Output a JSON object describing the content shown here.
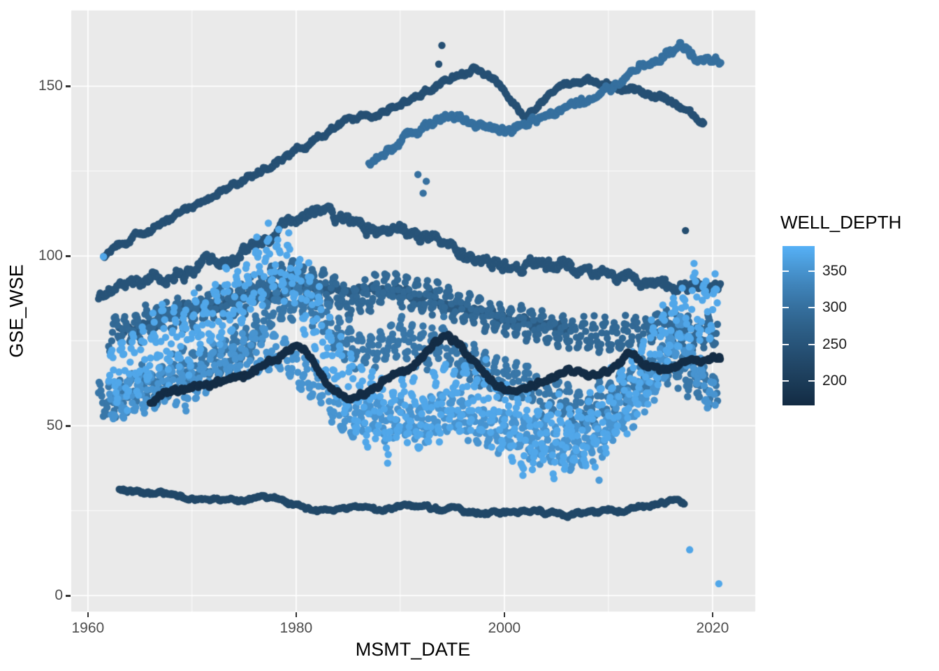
{
  "chart_data": {
    "type": "scatter",
    "title": "",
    "xlabel": "MSMT_DATE",
    "ylabel": "GSE_WSE",
    "x_axis": {
      "ticks": [
        1960,
        1980,
        2000,
        2020
      ],
      "tick_labels": [
        "1960",
        "1980",
        "2000",
        "2020"
      ],
      "minor_ticks": [
        1970,
        1990,
        2010
      ],
      "lim": [
        1958.4,
        2024.1
      ]
    },
    "y_axis": {
      "ticks": [
        0,
        50,
        100,
        150
      ],
      "tick_labels": [
        "0",
        "50",
        "100",
        "150"
      ],
      "minor_ticks": [
        25,
        75,
        125
      ],
      "lim": [
        -4.7,
        172.3
      ]
    },
    "grid": "on",
    "legend": {
      "title": "WELL_DEPTH",
      "position": "right",
      "ticks": [
        350,
        300,
        250,
        200
      ],
      "tick_labels": [
        "350",
        "300",
        "250",
        "200"
      ],
      "domain": [
        166,
        385
      ]
    },
    "colors": {
      "panel_bg": "#EAEAEA",
      "grid": "#FFFFFF",
      "scale_low": "#132B43",
      "scale_high": "#56B1F7",
      "tick_text": "#4D4D4D",
      "axis_tick": "#333333"
    },
    "point_radius_px": 5.2,
    "series": [
      {
        "well_depth": 224,
        "seasonal": false,
        "amp": 1.1,
        "per_year": 10,
        "start": 1963,
        "end": 2017.3,
        "phase": 0,
        "keypoints": [
          [
            1963,
            31
          ],
          [
            1965,
            30.5
          ],
          [
            1967,
            30
          ],
          [
            1969,
            29
          ],
          [
            1971,
            28.5
          ],
          [
            1973,
            28
          ],
          [
            1975,
            27.5
          ],
          [
            1977,
            29.5
          ],
          [
            1978,
            28.5
          ],
          [
            1980,
            26.5
          ],
          [
            1982,
            24.5
          ],
          [
            1984,
            25.5
          ],
          [
            1986,
            26
          ],
          [
            1988,
            25.5
          ],
          [
            1990,
            26.5
          ],
          [
            1992,
            26
          ],
          [
            1994,
            25.5
          ],
          [
            1996,
            25
          ],
          [
            1998,
            24.5
          ],
          [
            2000,
            24.5
          ],
          [
            2002,
            25
          ],
          [
            2004,
            24.5
          ],
          [
            2006,
            24
          ],
          [
            2008,
            24.5
          ],
          [
            2010,
            25.5
          ],
          [
            2012,
            25.5
          ],
          [
            2014,
            26.5
          ],
          [
            2016,
            28
          ],
          [
            2017.3,
            27.5
          ]
        ]
      },
      {
        "well_depth": 262,
        "seasonal": false,
        "amp": 3.0,
        "per_year": 10,
        "start": 1963,
        "end": 2006,
        "phase": 0,
        "keypoints": [
          [
            1963,
            78
          ],
          [
            1967,
            82
          ],
          [
            1971,
            85
          ],
          [
            1975,
            87.5
          ],
          [
            1979,
            90
          ],
          [
            1982,
            92
          ],
          [
            1985,
            89.5
          ],
          [
            1988,
            91
          ],
          [
            1991,
            88.5
          ],
          [
            1994,
            86.5
          ],
          [
            1997,
            84
          ],
          [
            2000,
            81.5
          ],
          [
            2003,
            80
          ],
          [
            2006,
            79
          ]
        ]
      },
      {
        "well_depth": 290,
        "seasonal": true,
        "amp": 5.0,
        "per_year": 11,
        "start": 1962,
        "end": 2020.5,
        "phase": 4.0,
        "keypoints": [
          [
            1962,
            76
          ],
          [
            1966,
            80
          ],
          [
            1970,
            84
          ],
          [
            1974,
            88
          ],
          [
            1977,
            92
          ],
          [
            1980,
            95
          ],
          [
            1983,
            90
          ],
          [
            1986,
            87
          ],
          [
            1989,
            91
          ],
          [
            1992,
            88
          ],
          [
            1995,
            86
          ],
          [
            1998,
            83
          ],
          [
            2001,
            80.5
          ],
          [
            2004,
            79
          ],
          [
            2007,
            77
          ],
          [
            2010,
            76
          ],
          [
            2013,
            78
          ],
          [
            2016,
            80
          ],
          [
            2018,
            76.5
          ],
          [
            2020.5,
            78
          ]
        ]
      },
      {
        "well_depth": 312,
        "seasonal": true,
        "amp": 6.0,
        "per_year": 12,
        "start": 1961,
        "end": 2020.5,
        "phase": 0.8,
        "keypoints": [
          [
            1961,
            56
          ],
          [
            1964,
            60
          ],
          [
            1967,
            63
          ],
          [
            1970,
            66
          ],
          [
            1973,
            70
          ],
          [
            1976,
            77
          ],
          [
            1978,
            83
          ],
          [
            1980,
            88
          ],
          [
            1982,
            85
          ],
          [
            1984,
            77
          ],
          [
            1986,
            72
          ],
          [
            1988,
            74
          ],
          [
            1990,
            76
          ],
          [
            1992,
            72
          ],
          [
            1994,
            74
          ],
          [
            1996,
            70
          ],
          [
            1998,
            67
          ],
          [
            2000,
            64
          ],
          [
            2002,
            62
          ],
          [
            2004,
            60
          ],
          [
            2006,
            57
          ],
          [
            2008,
            55
          ],
          [
            2010,
            59
          ],
          [
            2012,
            62
          ],
          [
            2014,
            65
          ],
          [
            2016,
            69
          ],
          [
            2018,
            63
          ],
          [
            2020.5,
            60
          ]
        ]
      },
      {
        "well_depth": 250,
        "seasonal": false,
        "amp": 3.4,
        "per_year": 12,
        "start": 1961,
        "end": 2020.8,
        "phase": 0,
        "keypoints": [
          [
            1961,
            88
          ],
          [
            1963,
            90.5
          ],
          [
            1965,
            92
          ],
          [
            1967,
            93.5
          ],
          [
            1969,
            95
          ],
          [
            1971,
            97
          ],
          [
            1973,
            99
          ],
          [
            1975,
            101
          ],
          [
            1977,
            104.5
          ],
          [
            1979,
            108.5
          ],
          [
            1981,
            112
          ],
          [
            1982,
            113.5
          ],
          [
            1983.5,
            111
          ],
          [
            1985,
            109.5
          ],
          [
            1987,
            108.5
          ],
          [
            1989,
            108
          ],
          [
            1991,
            106.5
          ],
          [
            1993,
            104.5
          ],
          [
            1995,
            102.5
          ],
          [
            1997,
            100
          ],
          [
            1999,
            98
          ],
          [
            2001,
            97
          ],
          [
            2003,
            98
          ],
          [
            2005,
            98
          ],
          [
            2007,
            96
          ],
          [
            2009,
            94.5
          ],
          [
            2011,
            93.5
          ],
          [
            2013,
            92.5
          ],
          [
            2015,
            91.5
          ],
          [
            2017,
            90.5
          ],
          [
            2020.8,
            91
          ]
        ]
      },
      {
        "well_depth": 242,
        "seasonal": false,
        "amp": 1.7,
        "per_year": 12,
        "start": 1961.5,
        "end": 2019.2,
        "phase": 0,
        "keypoints": [
          [
            1961.5,
            100
          ],
          [
            1963,
            103.5
          ],
          [
            1965,
            106.5
          ],
          [
            1967,
            109.5
          ],
          [
            1969,
            112.5
          ],
          [
            1971,
            115.5
          ],
          [
            1973,
            119.5
          ],
          [
            1975,
            123
          ],
          [
            1977,
            126
          ],
          [
            1979,
            129
          ],
          [
            1981,
            133
          ],
          [
            1983,
            137
          ],
          [
            1985,
            139.5
          ],
          [
            1987,
            141
          ],
          [
            1989,
            143.5
          ],
          [
            1991,
            146.5
          ],
          [
            1993,
            149.5
          ],
          [
            1995,
            152.5
          ],
          [
            1997,
            155
          ],
          [
            1999,
            152
          ],
          [
            2001,
            144.5
          ],
          [
            2002,
            141.5
          ],
          [
            2003,
            144
          ],
          [
            2005,
            149.5
          ],
          [
            2007,
            152
          ],
          [
            2009,
            151
          ],
          [
            2011,
            150
          ],
          [
            2013,
            148.5
          ],
          [
            2015,
            147
          ],
          [
            2017,
            143.5
          ],
          [
            2018,
            141
          ],
          [
            2019.2,
            138.5
          ]
        ]
      },
      {
        "well_depth": 302,
        "seasonal": false,
        "amp": 2.2,
        "per_year": 13,
        "start": 1987,
        "end": 2020.8,
        "phase": 0,
        "keypoints": [
          [
            1987,
            127.5
          ],
          [
            1989,
            132
          ],
          [
            1991,
            136.5
          ],
          [
            1993,
            139.5
          ],
          [
            1994.5,
            141.5
          ],
          [
            1996,
            140
          ],
          [
            1998,
            138
          ],
          [
            2000,
            137
          ],
          [
            2002,
            138.5
          ],
          [
            2004,
            141
          ],
          [
            2006,
            143.5
          ],
          [
            2008,
            146
          ],
          [
            2010,
            149
          ],
          [
            2012,
            153
          ],
          [
            2014,
            157
          ],
          [
            2016,
            161
          ],
          [
            2017,
            162
          ],
          [
            2018,
            159
          ],
          [
            2019,
            157
          ],
          [
            2020.8,
            158
          ]
        ]
      },
      {
        "well_depth": 352,
        "seasonal": true,
        "amp": 6.5,
        "per_year": 12,
        "start": 1962,
        "end": 2020.3,
        "phase": 2.1,
        "keypoints": [
          [
            1962,
            57
          ],
          [
            1965,
            60
          ],
          [
            1968,
            62
          ],
          [
            1971,
            65
          ],
          [
            1974,
            69
          ],
          [
            1977,
            73
          ],
          [
            1979,
            71
          ],
          [
            1982,
            62
          ],
          [
            1985,
            53
          ],
          [
            1988,
            54
          ],
          [
            1991,
            51
          ],
          [
            1994,
            54
          ],
          [
            1997,
            51
          ],
          [
            2000,
            48
          ],
          [
            2003,
            46
          ],
          [
            2006,
            43.5
          ],
          [
            2008,
            45
          ],
          [
            2010,
            50
          ],
          [
            2012,
            55
          ],
          [
            2014,
            62
          ],
          [
            2016,
            72
          ],
          [
            2017,
            77
          ],
          [
            2018,
            70
          ],
          [
            2019,
            63
          ],
          [
            2020.3,
            58
          ]
        ]
      },
      {
        "well_depth": 374,
        "seasonal": true,
        "amp": 11.0,
        "per_year": 13,
        "start": 1962,
        "end": 2020.5,
        "phase": 0,
        "keypoints": [
          [
            1962,
            63
          ],
          [
            1964,
            68
          ],
          [
            1966,
            72
          ],
          [
            1968,
            75
          ],
          [
            1970,
            78
          ],
          [
            1972,
            82
          ],
          [
            1974,
            87
          ],
          [
            1976,
            93
          ],
          [
            1978,
            98
          ],
          [
            1980,
            94
          ],
          [
            1982,
            82
          ],
          [
            1984,
            66
          ],
          [
            1986,
            56
          ],
          [
            1988,
            54
          ],
          [
            1990,
            55
          ],
          [
            1992,
            52
          ],
          [
            1994,
            57
          ],
          [
            1996,
            60
          ],
          [
            1998,
            56
          ],
          [
            2000,
            52
          ],
          [
            2002,
            50
          ],
          [
            2004,
            48
          ],
          [
            2006,
            46
          ],
          [
            2008,
            48
          ],
          [
            2010,
            54
          ],
          [
            2012,
            60
          ],
          [
            2014,
            68
          ],
          [
            2016,
            78
          ],
          [
            2018,
            84
          ],
          [
            2020.5,
            87
          ]
        ]
      },
      {
        "well_depth": 170,
        "seasonal": false,
        "amp": 1.6,
        "per_year": 13,
        "start": 1966,
        "end": 2020.8,
        "phase": 0,
        "keypoints": [
          [
            1966,
            57
          ],
          [
            1968,
            60
          ],
          [
            1970,
            61.5
          ],
          [
            1972,
            62.5
          ],
          [
            1974,
            64
          ],
          [
            1976,
            66.5
          ],
          [
            1978,
            70
          ],
          [
            1980,
            74
          ],
          [
            1981,
            72
          ],
          [
            1983,
            62
          ],
          [
            1985,
            57.5
          ],
          [
            1987,
            60
          ],
          [
            1989,
            64
          ],
          [
            1991,
            67
          ],
          [
            1993,
            73
          ],
          [
            1994.5,
            77
          ],
          [
            1996,
            72
          ],
          [
            1998,
            65
          ],
          [
            2000,
            60.5
          ],
          [
            2002,
            61
          ],
          [
            2004,
            63.5
          ],
          [
            2006,
            66
          ],
          [
            2008,
            65
          ],
          [
            2010,
            66
          ],
          [
            2012,
            71.5
          ],
          [
            2013.5,
            68
          ],
          [
            2015,
            66.5
          ],
          [
            2017,
            68
          ],
          [
            2019,
            69
          ],
          [
            2020.8,
            70
          ]
        ]
      }
    ],
    "outlier_points": [
      [
        1961.5,
        99.8,
        374
      ],
      [
        1994.0,
        162.0,
        242
      ],
      [
        1993.7,
        156.5,
        242
      ],
      [
        1992.5,
        122.0,
        302
      ],
      [
        1992.2,
        118.5,
        302
      ],
      [
        1991.7,
        124.0,
        302
      ],
      [
        2017.4,
        107.5,
        235
      ],
      [
        2009.1,
        34.0,
        360
      ],
      [
        2017.8,
        13.5,
        372
      ],
      [
        2020.6,
        3.5,
        374
      ]
    ]
  },
  "axes_text": {
    "x_title": "MSMT_DATE",
    "y_title": "GSE_WSE"
  }
}
